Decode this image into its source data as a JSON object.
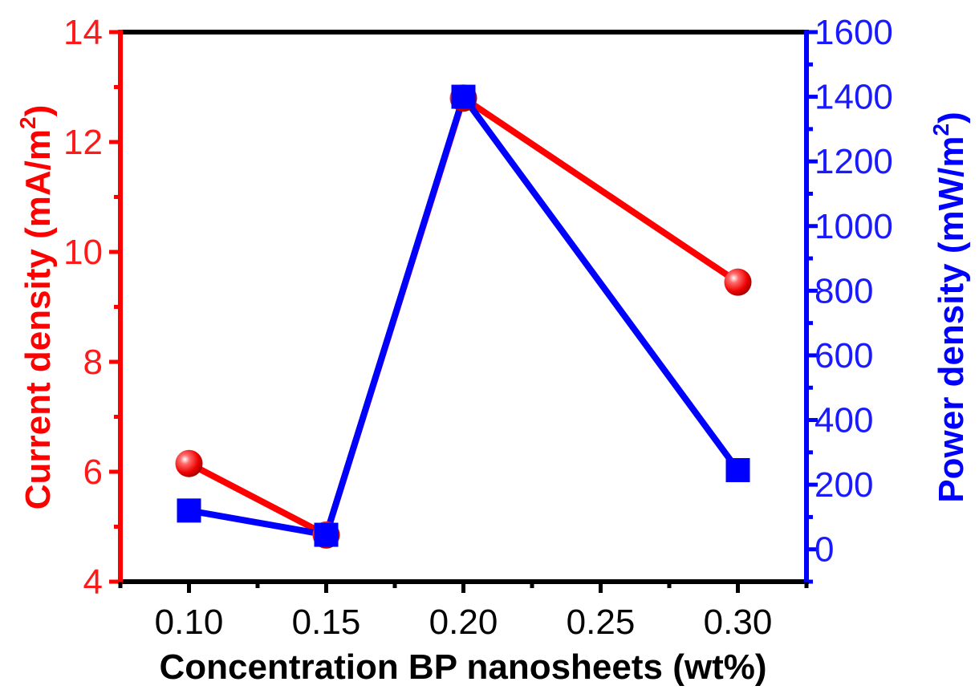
{
  "chart_data": {
    "type": "line",
    "xlabel": "Concentration BP nanosheets (wt%)",
    "x_ticks": [
      "0.10",
      "0.15",
      "0.20",
      "0.25",
      "0.30"
    ],
    "xlim": [
      0.075,
      0.325
    ],
    "y_left": {
      "label_prefix": "Current density (mA/m",
      "label_sup": "2",
      "label_suffix": ")",
      "ylim": [
        4,
        14
      ],
      "ticks": [
        "4",
        "6",
        "8",
        "10",
        "12",
        "14"
      ],
      "color": "#ff0000"
    },
    "y_right": {
      "label_prefix": "Power density (mW/m",
      "label_sup": "2",
      "label_suffix": ")",
      "ylim": [
        -100,
        1600
      ],
      "ticks": [
        "0",
        "200",
        "400",
        "600",
        "800",
        "1000",
        "1200",
        "1400",
        "1600"
      ],
      "color": "#0000ff"
    },
    "series": [
      {
        "axis": "left",
        "marker": "circle",
        "color": "#ff0000",
        "points": [
          {
            "x": 0.1,
            "y": 6.15
          },
          {
            "x": 0.15,
            "y": 4.85
          },
          {
            "x": 0.2,
            "y": 12.8
          },
          {
            "x": 0.3,
            "y": 9.45
          }
        ]
      },
      {
        "axis": "right",
        "marker": "square",
        "color": "#0000ff",
        "points": [
          {
            "x": 0.1,
            "y": 120
          },
          {
            "x": 0.15,
            "y": 45
          },
          {
            "x": 0.2,
            "y": 1400
          },
          {
            "x": 0.3,
            "y": 245
          }
        ]
      }
    ],
    "grid": false,
    "legend": "none"
  }
}
